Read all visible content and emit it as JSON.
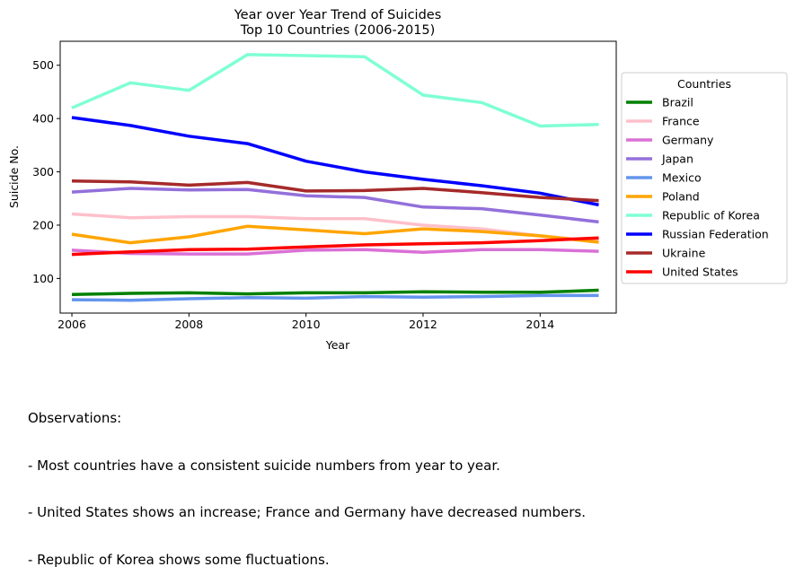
{
  "chart_data": {
    "type": "line",
    "title": "Year over Year Trend of Suicides",
    "subtitle": "Top 10 Countries (2006-2015)",
    "xlabel": "Year",
    "ylabel": "Suicide No.",
    "xlim": [
      2005.8,
      2015.3
    ],
    "ylim": [
      35,
      545
    ],
    "x_ticks": [
      2006,
      2008,
      2010,
      2012,
      2014
    ],
    "y_ticks": [
      100,
      200,
      300,
      400,
      500
    ],
    "grid": false,
    "legend": {
      "title": "Countries",
      "placement": "right"
    },
    "x": [
      2006,
      2007,
      2008,
      2009,
      2010,
      2011,
      2012,
      2013,
      2014,
      2015
    ],
    "series": [
      {
        "name": "Brazil",
        "color": "#008000",
        "values": [
          70,
          72,
          73,
          71,
          73,
          73,
          75,
          74,
          74,
          78
        ]
      },
      {
        "name": "France",
        "color": "#ffc0cb",
        "values": [
          221,
          214,
          216,
          216,
          212,
          212,
          200,
          193,
          180,
          170
        ]
      },
      {
        "name": "Germany",
        "color": "#da70d6",
        "values": [
          153,
          147,
          146,
          146,
          153,
          154,
          149,
          154,
          154,
          151
        ]
      },
      {
        "name": "Japan",
        "color": "#9370db",
        "values": [
          262,
          269,
          266,
          267,
          255,
          252,
          234,
          231,
          219,
          206
        ]
      },
      {
        "name": "Mexico",
        "color": "#6495ed",
        "values": [
          60,
          59,
          62,
          64,
          63,
          66,
          65,
          66,
          68,
          68
        ]
      },
      {
        "name": "Poland",
        "color": "#ffa500",
        "values": [
          183,
          167,
          178,
          198,
          191,
          184,
          193,
          188,
          180,
          168
        ]
      },
      {
        "name": "Republic of Korea",
        "color": "#7fffd4",
        "values": [
          420,
          467,
          453,
          520,
          518,
          516,
          444,
          430,
          386,
          389
        ]
      },
      {
        "name": "Russian Federation",
        "color": "#0000ff",
        "values": [
          402,
          387,
          367,
          353,
          320,
          300,
          286,
          274,
          260,
          238
        ]
      },
      {
        "name": "Ukraine",
        "color": "#a52a2a",
        "values": [
          283,
          281,
          275,
          280,
          264,
          265,
          269,
          261,
          252,
          246
        ]
      },
      {
        "name": "United States",
        "color": "#ff0000",
        "values": [
          145,
          150,
          154,
          155,
          159,
          163,
          165,
          167,
          171,
          176
        ]
      }
    ]
  },
  "observations": {
    "heading": "Observations:",
    "lines": [
      "- Most countries have a consistent suicide numbers from year to year.",
      "- United States shows an increase; France and Germany have decreased numbers.",
      "- Republic of Korea shows some fluctuations."
    ]
  }
}
